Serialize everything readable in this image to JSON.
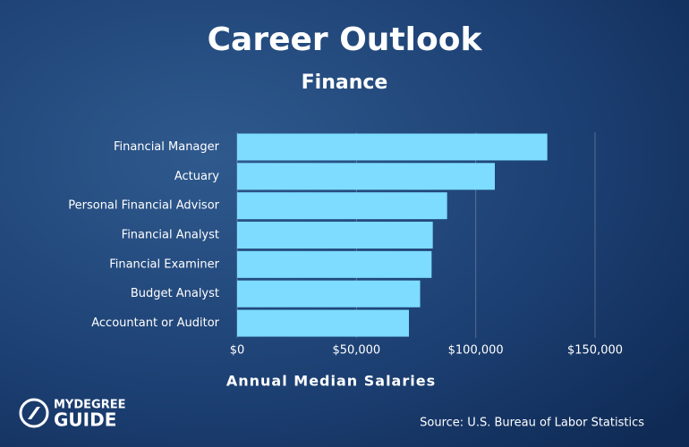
{
  "chart_data": {
    "type": "barh",
    "title": "Career Outlook",
    "subtitle": "Finance",
    "categories": [
      "Financial Manager",
      "Actuary",
      "Personal Financial Advisor",
      "Financial Analyst",
      "Financial Examiner",
      "Budget Analyst",
      "Accountant or Auditor"
    ],
    "values": [
      130000,
      108000,
      88000,
      82000,
      81500,
      76700,
      72000
    ],
    "color": "#7ddcff",
    "xlim": [
      0,
      150000
    ],
    "xticks": [
      {
        "value": 0,
        "label": "$0"
      },
      {
        "value": 50000,
        "label": "$50,000"
      },
      {
        "value": 100000,
        "label": "$100,000"
      },
      {
        "value": 150000,
        "label": "$150,000"
      }
    ],
    "grid": true,
    "xlabel": "Annual Median Salaries",
    "source": "Source: U.S. Bureau of Labor Statistics",
    "logo": [
      "MYDEGREE",
      "GUIDE"
    ]
  }
}
